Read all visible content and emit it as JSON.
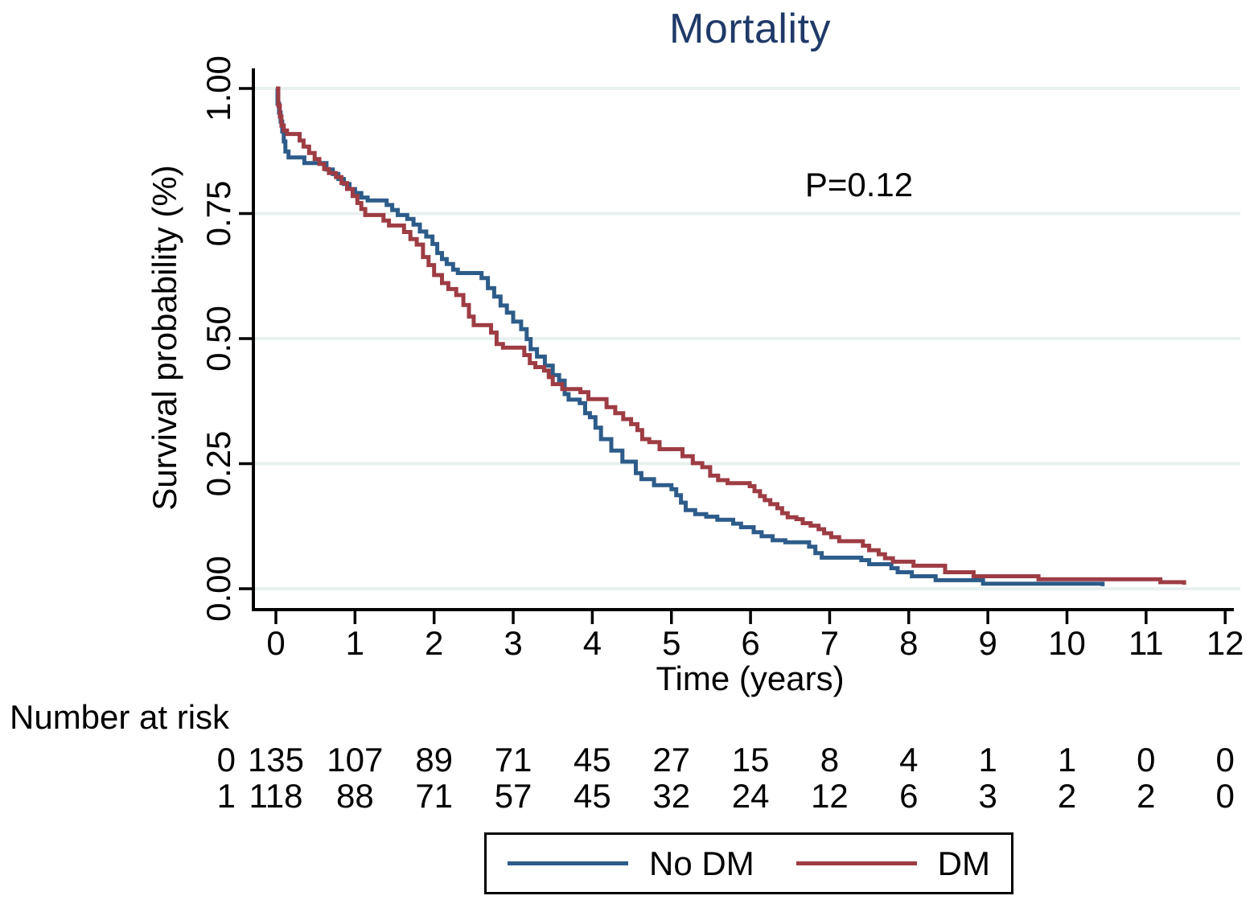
{
  "chart_data": {
    "type": "line",
    "subtype": "kaplan-meier-step",
    "title": "Mortality",
    "xlabel": "Time (years)",
    "ylabel": "Survival probability (%)",
    "xlim": [
      0,
      12
    ],
    "ylim": [
      0,
      1
    ],
    "x_ticks": [
      0,
      1,
      2,
      3,
      4,
      5,
      6,
      7,
      8,
      9,
      10,
      11,
      12
    ],
    "y_ticks": [
      1.0,
      0.75,
      0.5,
      0.25,
      0.0
    ],
    "y_tick_labels": [
      "1.00",
      "0.75",
      "0.50",
      "0.25",
      "0.00"
    ],
    "grid": "horizontal-only",
    "grid_color": "#e8f0f0",
    "legend_position": "bottom",
    "annotation": {
      "text": "P=0.12",
      "x": 7.4,
      "y": 0.8
    },
    "series": [
      {
        "name": "No DM",
        "color": "#2d5c8a",
        "points": [
          [
            0,
            1.0
          ],
          [
            0.02,
            0.97
          ],
          [
            0.04,
            0.952
          ],
          [
            0.06,
            0.934
          ],
          [
            0.08,
            0.914
          ],
          [
            0.1,
            0.894
          ],
          [
            0.12,
            0.874
          ],
          [
            0.16,
            0.862
          ],
          [
            0.36,
            0.851
          ],
          [
            0.64,
            0.838
          ],
          [
            0.72,
            0.829
          ],
          [
            0.79,
            0.819
          ],
          [
            0.86,
            0.809
          ],
          [
            0.93,
            0.799
          ],
          [
            1.0,
            0.791
          ],
          [
            1.08,
            0.782
          ],
          [
            1.16,
            0.776
          ],
          [
            1.4,
            0.767
          ],
          [
            1.47,
            0.757
          ],
          [
            1.54,
            0.747
          ],
          [
            1.66,
            0.739
          ],
          [
            1.74,
            0.728
          ],
          [
            1.82,
            0.714
          ],
          [
            1.9,
            0.704
          ],
          [
            1.98,
            0.689
          ],
          [
            2.04,
            0.671
          ],
          [
            2.1,
            0.659
          ],
          [
            2.16,
            0.649
          ],
          [
            2.24,
            0.638
          ],
          [
            2.3,
            0.631
          ],
          [
            2.6,
            0.621
          ],
          [
            2.68,
            0.601
          ],
          [
            2.76,
            0.584
          ],
          [
            2.84,
            0.566
          ],
          [
            2.92,
            0.552
          ],
          [
            3.0,
            0.534
          ],
          [
            3.1,
            0.519
          ],
          [
            3.17,
            0.499
          ],
          [
            3.22,
            0.479
          ],
          [
            3.3,
            0.464
          ],
          [
            3.4,
            0.446
          ],
          [
            3.5,
            0.427
          ],
          [
            3.58,
            0.416
          ],
          [
            3.65,
            0.389
          ],
          [
            3.7,
            0.378
          ],
          [
            3.84,
            0.371
          ],
          [
            3.91,
            0.351
          ],
          [
            3.97,
            0.343
          ],
          [
            4.04,
            0.322
          ],
          [
            4.11,
            0.299
          ],
          [
            4.24,
            0.276
          ],
          [
            4.38,
            0.254
          ],
          [
            4.55,
            0.231
          ],
          [
            4.62,
            0.219
          ],
          [
            4.78,
            0.207
          ],
          [
            5.0,
            0.199
          ],
          [
            5.06,
            0.187
          ],
          [
            5.12,
            0.172
          ],
          [
            5.18,
            0.157
          ],
          [
            5.3,
            0.149
          ],
          [
            5.44,
            0.144
          ],
          [
            5.58,
            0.138
          ],
          [
            5.78,
            0.13
          ],
          [
            5.88,
            0.123
          ],
          [
            6.04,
            0.113
          ],
          [
            6.14,
            0.105
          ],
          [
            6.28,
            0.097
          ],
          [
            6.44,
            0.093
          ],
          [
            6.74,
            0.084
          ],
          [
            6.82,
            0.071
          ],
          [
            6.9,
            0.062
          ],
          [
            7.4,
            0.057
          ],
          [
            7.5,
            0.049
          ],
          [
            7.78,
            0.041
          ],
          [
            7.86,
            0.033
          ],
          [
            8.04,
            0.025
          ],
          [
            8.34,
            0.017
          ],
          [
            8.94,
            0.01
          ],
          [
            10.42,
            0.01
          ],
          [
            10.45,
            0.005
          ]
        ]
      },
      {
        "name": "DM",
        "color": "#9e3c44",
        "points": [
          [
            0,
            1.0
          ],
          [
            0.03,
            0.966
          ],
          [
            0.05,
            0.944
          ],
          [
            0.07,
            0.926
          ],
          [
            0.1,
            0.916
          ],
          [
            0.14,
            0.909
          ],
          [
            0.3,
            0.896
          ],
          [
            0.35,
            0.884
          ],
          [
            0.42,
            0.871
          ],
          [
            0.49,
            0.859
          ],
          [
            0.55,
            0.849
          ],
          [
            0.61,
            0.839
          ],
          [
            0.67,
            0.831
          ],
          [
            0.76,
            0.823
          ],
          [
            0.83,
            0.811
          ],
          [
            0.9,
            0.799
          ],
          [
            0.97,
            0.785
          ],
          [
            1.03,
            0.771
          ],
          [
            1.08,
            0.759
          ],
          [
            1.13,
            0.747
          ],
          [
            1.36,
            0.736
          ],
          [
            1.43,
            0.726
          ],
          [
            1.62,
            0.713
          ],
          [
            1.7,
            0.699
          ],
          [
            1.78,
            0.688
          ],
          [
            1.86,
            0.663
          ],
          [
            1.93,
            0.647
          ],
          [
            2.0,
            0.627
          ],
          [
            2.1,
            0.611
          ],
          [
            2.18,
            0.599
          ],
          [
            2.28,
            0.587
          ],
          [
            2.37,
            0.567
          ],
          [
            2.44,
            0.544
          ],
          [
            2.5,
            0.527
          ],
          [
            2.72,
            0.512
          ],
          [
            2.79,
            0.489
          ],
          [
            2.87,
            0.482
          ],
          [
            3.14,
            0.467
          ],
          [
            3.21,
            0.451
          ],
          [
            3.28,
            0.443
          ],
          [
            3.39,
            0.436
          ],
          [
            3.45,
            0.423
          ],
          [
            3.5,
            0.409
          ],
          [
            3.62,
            0.399
          ],
          [
            3.85,
            0.393
          ],
          [
            3.95,
            0.379
          ],
          [
            4.18,
            0.363
          ],
          [
            4.29,
            0.351
          ],
          [
            4.39,
            0.339
          ],
          [
            4.49,
            0.329
          ],
          [
            4.57,
            0.317
          ],
          [
            4.63,
            0.299
          ],
          [
            4.72,
            0.293
          ],
          [
            4.85,
            0.279
          ],
          [
            5.14,
            0.265
          ],
          [
            5.27,
            0.251
          ],
          [
            5.39,
            0.243
          ],
          [
            5.49,
            0.226
          ],
          [
            5.59,
            0.217
          ],
          [
            5.71,
            0.211
          ],
          [
            5.99,
            0.205
          ],
          [
            6.05,
            0.195
          ],
          [
            6.12,
            0.185
          ],
          [
            6.18,
            0.177
          ],
          [
            6.25,
            0.169
          ],
          [
            6.34,
            0.161
          ],
          [
            6.4,
            0.151
          ],
          [
            6.47,
            0.143
          ],
          [
            6.58,
            0.139
          ],
          [
            6.66,
            0.131
          ],
          [
            6.76,
            0.126
          ],
          [
            6.86,
            0.119
          ],
          [
            6.93,
            0.111
          ],
          [
            7.02,
            0.103
          ],
          [
            7.12,
            0.095
          ],
          [
            7.42,
            0.086
          ],
          [
            7.5,
            0.077
          ],
          [
            7.62,
            0.069
          ],
          [
            7.7,
            0.061
          ],
          [
            7.8,
            0.054
          ],
          [
            8.06,
            0.046
          ],
          [
            8.46,
            0.033
          ],
          [
            8.82,
            0.025
          ],
          [
            9.64,
            0.019
          ],
          [
            11.18,
            0.013
          ],
          [
            11.45,
            0.013
          ],
          [
            11.48,
            0.008
          ]
        ]
      }
    ],
    "number_at_risk": {
      "heading": "Number at risk",
      "rows": [
        {
          "label": "0",
          "values": [
            135,
            107,
            89,
            71,
            45,
            27,
            15,
            8,
            4,
            1,
            1,
            0,
            0
          ]
        },
        {
          "label": "1",
          "values": [
            118,
            88,
            71,
            57,
            45,
            32,
            24,
            12,
            6,
            3,
            2,
            2,
            0
          ]
        }
      ]
    }
  },
  "legend": {
    "items": [
      {
        "label": "No DM",
        "color": "#2d5c8a"
      },
      {
        "label": "DM",
        "color": "#9e3c44"
      }
    ]
  },
  "colors": {
    "title": "#1f3a68",
    "axis": "#000000",
    "gridline": "#e8f0f0",
    "no_dm_line": "#2d5c8a",
    "dm_line": "#9e3c44"
  }
}
